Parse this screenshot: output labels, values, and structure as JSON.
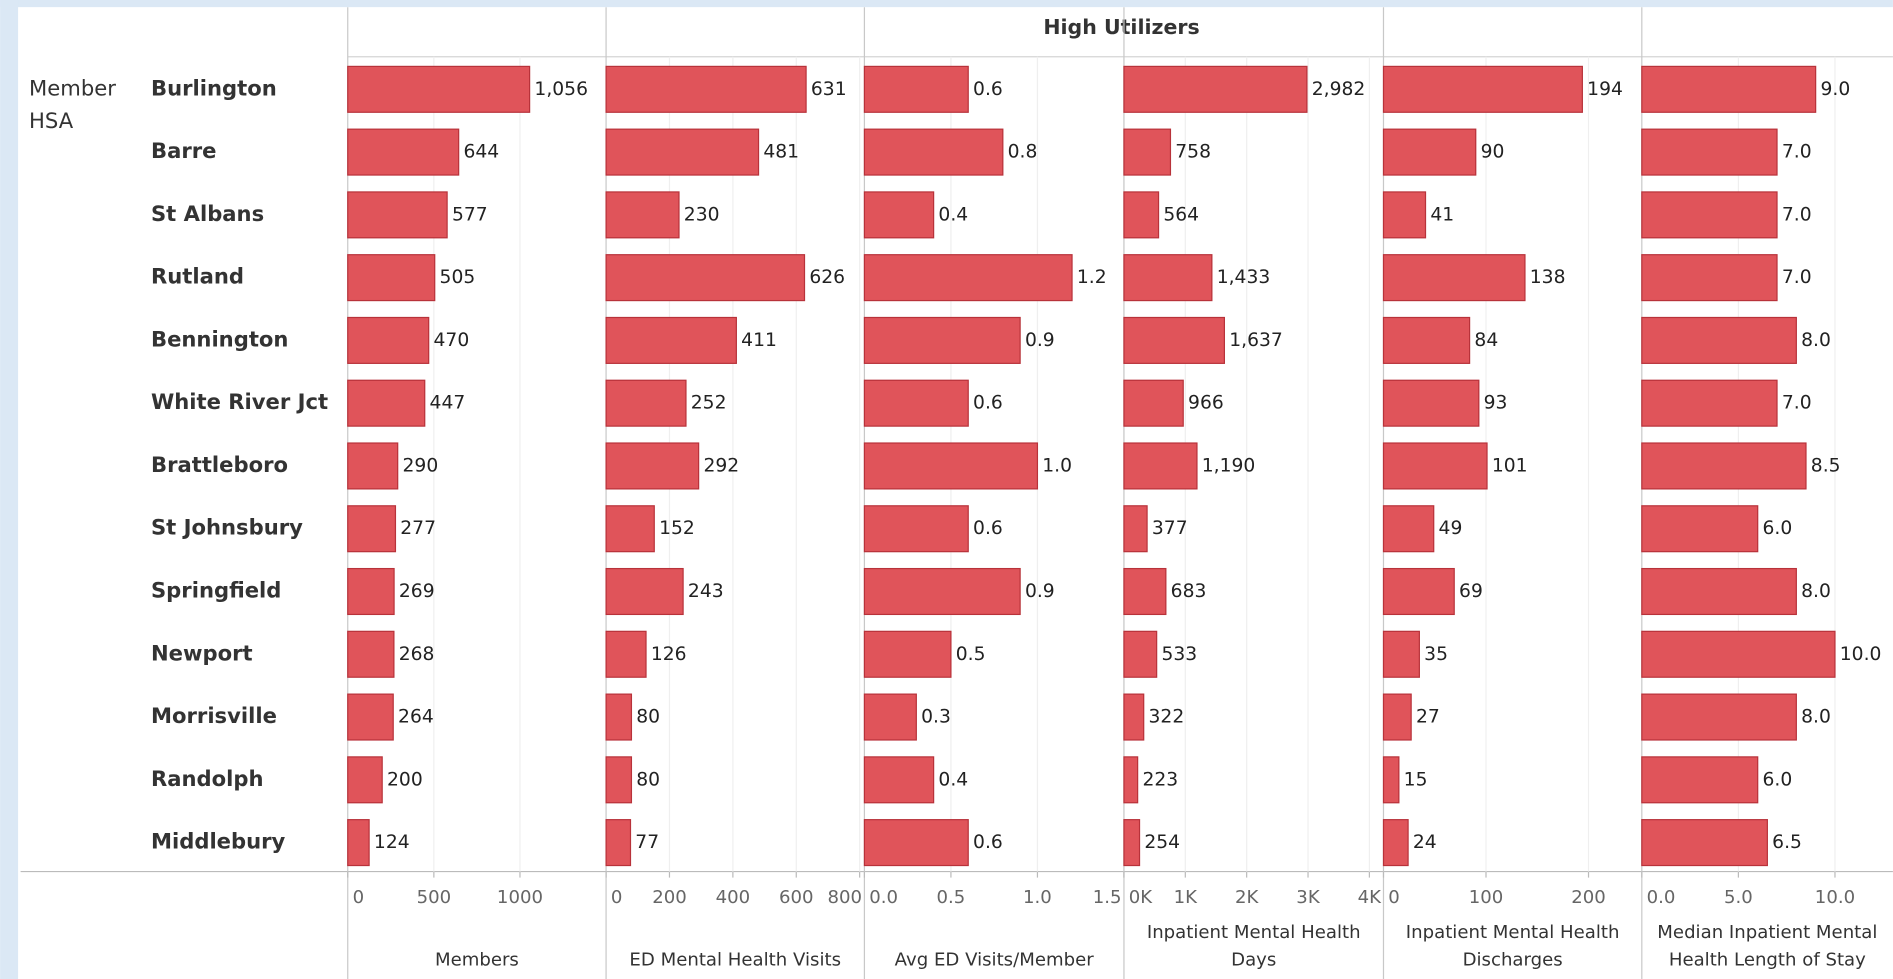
{
  "header": "High Utilizers",
  "row_label": "Member HSA",
  "categories": [
    "Burlington",
    "Barre",
    "St Albans",
    "Rutland",
    "Bennington",
    "White River Jct",
    "Brattleboro",
    "St Johnsbury",
    "Springfield",
    "Newport",
    "Morrisville",
    "Randolph",
    "Middlebury"
  ],
  "chart_data": [
    {
      "type": "bar",
      "xlabel": "Members",
      "color": "#e0545a",
      "values": [
        1056,
        644,
        577,
        505,
        470,
        447,
        290,
        277,
        269,
        268,
        264,
        200,
        124
      ],
      "value_labels": [
        "1,056",
        "644",
        "577",
        "505",
        "470",
        "447",
        "290",
        "277",
        "269",
        "268",
        "264",
        "200",
        "124"
      ],
      "xlim": [
        0,
        1500
      ],
      "xticks": [
        0,
        500,
        1000
      ]
    },
    {
      "type": "bar",
      "xlabel": "ED Mental Health Visits",
      "color": "#e0545a",
      "values": [
        631,
        481,
        230,
        626,
        411,
        252,
        292,
        152,
        243,
        126,
        80,
        80,
        77
      ],
      "value_labels": [
        "631",
        "481",
        "230",
        "626",
        "411",
        "252",
        "292",
        "152",
        "243",
        "126",
        "80",
        "80",
        "77"
      ],
      "xlim": [
        0,
        815
      ],
      "xticks": [
        0,
        200,
        400,
        600,
        800
      ]
    },
    {
      "type": "bar",
      "xlabel": "Avg ED Visits/Member",
      "color": "#e0545a",
      "values": [
        0.6,
        0.8,
        0.4,
        1.2,
        0.9,
        0.6,
        1.0,
        0.6,
        0.9,
        0.5,
        0.3,
        0.4,
        0.6
      ],
      "value_labels": [
        "0.6",
        "0.8",
        "0.4",
        "1.2",
        "0.9",
        "0.6",
        "1.0",
        "0.6",
        "0.9",
        "0.5",
        "0.3",
        "0.4",
        "0.6"
      ],
      "xlim": [
        0,
        1.5
      ],
      "xticks": [
        {
          "value": 0,
          "label": "0.0"
        },
        0.5,
        {
          "value": 1,
          "label": "1.0"
        },
        1.5
      ]
    },
    {
      "type": "bar",
      "xlabel": "Inpatient Mental Health Days",
      "color": "#e0545a",
      "values": [
        2982,
        758,
        564,
        1433,
        1637,
        966,
        1190,
        377,
        683,
        533,
        322,
        223,
        254
      ],
      "value_labels": [
        "2,982",
        "758",
        "564",
        "1,433",
        "1,637",
        "966",
        "1,190",
        "377",
        "683",
        "533",
        "322",
        "223",
        "254"
      ],
      "xlim": [
        0,
        4230
      ],
      "xticks": [
        {
          "value": 0,
          "label": "0K"
        },
        {
          "value": 1000,
          "label": "1K"
        },
        {
          "value": 2000,
          "label": "2K"
        },
        {
          "value": 3000,
          "label": "3K"
        },
        {
          "value": 4000,
          "label": "4K"
        }
      ]
    },
    {
      "type": "bar",
      "xlabel": "Inpatient Mental Health Discharges",
      "color": "#e0545a",
      "values": [
        194,
        90,
        41,
        138,
        84,
        93,
        101,
        49,
        69,
        35,
        27,
        15,
        24
      ],
      "value_labels": [
        "194",
        "90",
        "41",
        "138",
        "84",
        "93",
        "101",
        "49",
        "69",
        "35",
        "27",
        "15",
        "24"
      ],
      "xlim": [
        0,
        252
      ],
      "xticks": [
        0,
        100,
        200
      ]
    },
    {
      "type": "bar",
      "xlabel": "Median Inpatient Mental Health Length of Stay",
      "color": "#e0545a",
      "values": [
        9.0,
        7.0,
        7.0,
        7.0,
        8.0,
        7.0,
        8.5,
        6.0,
        8.0,
        10.0,
        8.0,
        6.0,
        6.5
      ],
      "value_labels": [
        "9.0",
        "7.0",
        "7.0",
        "7.0",
        "8.0",
        "7.0",
        "8.5",
        "6.0",
        "8.0",
        "10.0",
        "8.0",
        "6.0",
        "6.5"
      ],
      "xlim": [
        0,
        13
      ],
      "xticks": [
        {
          "value": 0,
          "label": "0.0"
        },
        {
          "value": 5,
          "label": "5.0"
        },
        {
          "value": 10,
          "label": "10.0"
        }
      ]
    }
  ]
}
